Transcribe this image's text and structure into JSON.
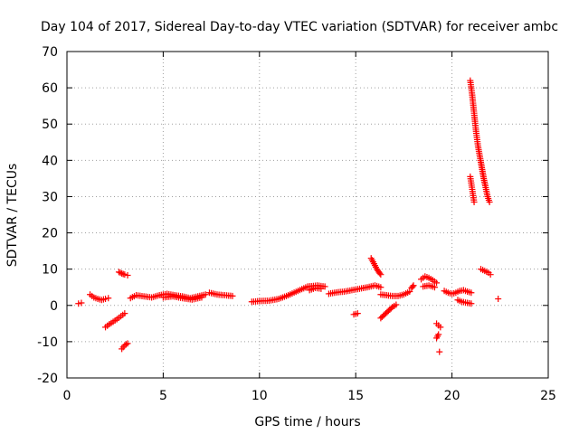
{
  "chart_data": {
    "type": "scatter",
    "title": "Day 104 of 2017, Sidereal Day-to-day VTEC variation (SDTVAR) for receiver ambc",
    "xlabel": "GPS time / hours",
    "ylabel": "SDTVAR / TECUs",
    "xlim": [
      0,
      25
    ],
    "ylim": [
      -20,
      70
    ],
    "xticks": [
      0,
      5,
      10,
      15,
      20,
      25
    ],
    "xtick_labels": [
      "0",
      "5",
      "10",
      "15",
      "20",
      "25"
    ],
    "yticks": [
      -20,
      -10,
      0,
      10,
      20,
      30,
      40,
      50,
      60,
      70
    ],
    "ytick_labels": [
      "-20",
      "-10",
      "0",
      "10",
      "20",
      "30",
      "40",
      "50",
      "60",
      "70"
    ],
    "grid": true,
    "marker": "+",
    "color": "#ff0000",
    "segments": [
      {
        "x": [
          0.6,
          0.75
        ],
        "y": [
          0.5,
          0.7
        ]
      },
      {
        "x": [
          1.2,
          1.4,
          1.6,
          1.8,
          2.0,
          2.15
        ],
        "y": [
          3.0,
          2.2,
          1.8,
          1.5,
          1.8,
          2.0
        ]
      },
      {
        "x": [
          2.0,
          2.2,
          2.4,
          2.6,
          2.8,
          3.0
        ],
        "y": [
          -6.0,
          -5.2,
          -4.5,
          -3.8,
          -3.0,
          -2.2
        ]
      },
      {
        "x": [
          2.7,
          2.85,
          3.0,
          3.15
        ],
        "y": [
          9.2,
          8.8,
          8.5,
          8.3
        ]
      },
      {
        "x": [
          2.85,
          3.0,
          3.15
        ],
        "y": [
          -12.0,
          -11.0,
          -10.5
        ]
      },
      {
        "x": [
          3.3,
          3.6,
          4.0,
          4.4,
          4.8,
          5.2,
          5.6,
          6.0,
          6.4,
          6.8,
          7.2
        ],
        "y": [
          2.0,
          2.8,
          2.5,
          2.2,
          2.8,
          3.2,
          2.8,
          2.5,
          2.0,
          2.5,
          3.0
        ]
      },
      {
        "x": [
          5.0,
          5.5,
          6.0,
          6.5,
          7.0
        ],
        "y": [
          2.2,
          2.5,
          2.0,
          1.6,
          2.2
        ]
      },
      {
        "x": [
          7.4,
          7.8,
          8.2,
          8.6
        ],
        "y": [
          3.5,
          3.0,
          2.8,
          2.6
        ]
      },
      {
        "x": [
          9.6,
          10.0,
          10.5,
          11.0,
          11.5,
          12.0,
          12.5,
          13.0,
          13.4
        ],
        "y": [
          1.0,
          1.2,
          1.3,
          1.8,
          2.8,
          4.0,
          5.2,
          5.5,
          5.2
        ]
      },
      {
        "x": [
          12.6,
          12.9,
          13.2
        ],
        "y": [
          4.2,
          4.8,
          4.6
        ]
      },
      {
        "x": [
          13.6,
          14.0,
          14.4,
          14.8,
          15.2,
          15.6,
          16.0,
          16.3
        ],
        "y": [
          3.2,
          3.6,
          3.8,
          4.2,
          4.6,
          5.0,
          5.5,
          5.0
        ]
      },
      {
        "x": [
          14.9,
          15.1
        ],
        "y": [
          -2.5,
          -2.2
        ]
      },
      {
        "x": [
          15.8,
          15.9,
          16.0,
          16.1,
          16.2,
          16.3
        ],
        "y": [
          13.0,
          12.0,
          11.0,
          10.0,
          9.2,
          8.5
        ]
      },
      {
        "x": [
          16.3,
          16.6,
          16.9,
          17.2,
          17.5,
          17.8
        ],
        "y": [
          3.0,
          2.8,
          2.6,
          2.6,
          3.0,
          3.8
        ]
      },
      {
        "x": [
          16.3,
          16.5,
          16.7,
          16.9,
          17.1
        ],
        "y": [
          -3.5,
          -2.5,
          -1.5,
          -0.5,
          0.2
        ]
      },
      {
        "x": [
          17.9,
          18.0
        ],
        "y": [
          4.8,
          5.5
        ]
      },
      {
        "x": [
          18.4,
          18.6,
          18.8,
          19.0,
          19.2
        ],
        "y": [
          7.2,
          8.0,
          7.6,
          7.0,
          6.2
        ]
      },
      {
        "x": [
          18.5,
          18.8,
          19.1
        ],
        "y": [
          5.2,
          5.5,
          5.0
        ]
      },
      {
        "x": [
          19.2,
          19.3,
          19.4
        ],
        "y": [
          -5.0,
          -5.5,
          -6.0
        ]
      },
      {
        "x": [
          19.2,
          19.3
        ],
        "y": [
          -9.0,
          -8.0
        ]
      },
      {
        "x": [
          19.35
        ],
        "y": [
          -12.8
        ]
      },
      {
        "x": [
          19.6,
          19.8,
          20.0,
          20.2,
          20.4,
          20.6,
          20.8,
          21.0
        ],
        "y": [
          4.0,
          3.5,
          3.2,
          3.5,
          4.0,
          4.2,
          3.8,
          3.5
        ]
      },
      {
        "x": [
          20.3,
          20.5,
          20.7,
          20.9,
          21.0
        ],
        "y": [
          1.5,
          1.0,
          0.8,
          0.6,
          0.5
        ]
      },
      {
        "x": [
          20.95,
          21.05,
          21.15,
          21.25,
          21.35,
          21.45,
          21.55,
          21.65,
          21.75,
          21.85,
          21.95
        ],
        "y": [
          62.0,
          58.0,
          53.0,
          48.0,
          44.0,
          41.0,
          38.0,
          35.0,
          32.5,
          30.0,
          28.5
        ]
      },
      {
        "x": [
          20.95,
          21.05,
          21.15
        ],
        "y": [
          35.5,
          32.0,
          28.5
        ]
      },
      {
        "x": [
          21.5,
          21.7,
          21.9,
          22.0
        ],
        "y": [
          10.0,
          9.5,
          9.0,
          8.5
        ]
      },
      {
        "x": [
          22.4
        ],
        "y": [
          1.8
        ]
      }
    ]
  }
}
